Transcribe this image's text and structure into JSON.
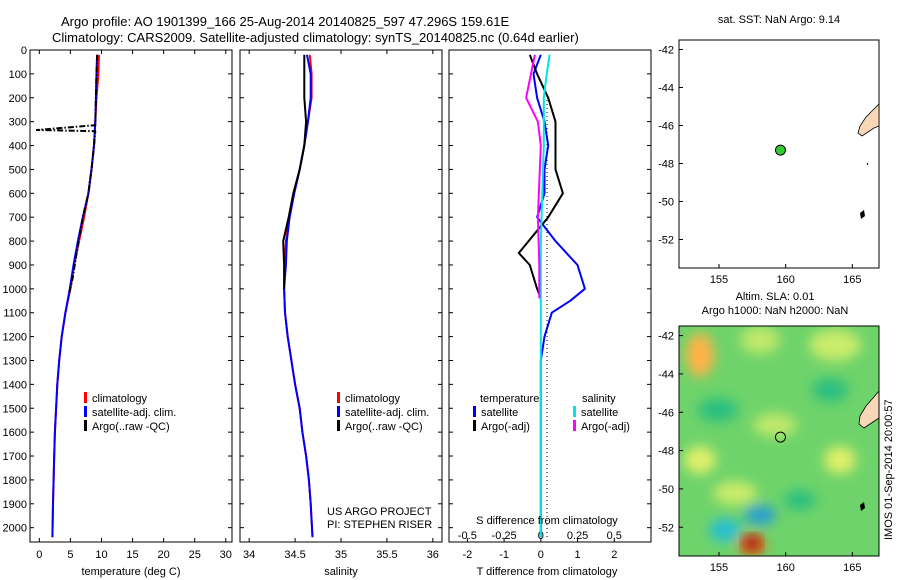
{
  "header": {
    "line1": "Argo profile: AO 1901399_166 25-Aug-2014 20140825_597 47.296S 159.61E",
    "line2": "Climatology: CARS2009. Satellite-adjusted climatology: synTS_20140825.nc (0.64d earlier)"
  },
  "colors": {
    "climatology": "#ff0000",
    "satellite": "#0000ff",
    "argo": "#000000",
    "sal_satellite": "#00e5e5",
    "sal_argo": "#ff00ff",
    "marker": "#33cc33"
  },
  "chart_data": [
    {
      "name": "temperature-profile",
      "type": "line",
      "xlabel": "temperature (deg C)",
      "xlim": [
        -1.5,
        31
      ],
      "xticks": [
        0,
        5,
        10,
        15,
        20,
        25,
        30
      ],
      "ylim": [
        2060,
        0
      ],
      "yticks": [
        0,
        100,
        200,
        300,
        400,
        500,
        600,
        700,
        800,
        900,
        1000,
        1100,
        1200,
        1300,
        1400,
        1500,
        1600,
        1700,
        1800,
        1900,
        2000
      ],
      "legend": [
        "climatology",
        "satellite-adj. clim.",
        "Argo(..raw -QC)"
      ],
      "legend_placement": "lower-center",
      "series": [
        {
          "name": "climatology",
          "x": [
            9.6,
            9.5,
            9.2,
            9.0,
            8.8,
            8.4,
            7.9,
            7.2,
            6.4,
            5.6,
            5.0,
            4.2,
            3.6,
            3.2,
            2.9,
            2.7,
            2.5,
            2.4,
            2.3,
            2.2,
            2.1
          ],
          "y": [
            20,
            100,
            200,
            300,
            400,
            500,
            600,
            700,
            800,
            900,
            1000,
            1100,
            1200,
            1300,
            1400,
            1500,
            1600,
            1700,
            1800,
            1900,
            2040
          ]
        },
        {
          "name": "satellite-adj. clim.",
          "x": [
            9.3,
            9.2,
            9.1,
            9.0,
            8.8,
            8.4,
            7.9,
            7.0,
            6.2,
            5.5,
            4.9,
            4.2,
            3.6,
            3.2,
            2.9,
            2.7,
            2.5,
            2.4,
            2.3,
            2.2,
            2.1
          ],
          "y": [
            20,
            100,
            200,
            300,
            400,
            500,
            600,
            700,
            800,
            900,
            1000,
            1100,
            1200,
            1300,
            1400,
            1500,
            1600,
            1700,
            1800,
            1900,
            2040
          ]
        },
        {
          "name": "Argo(..raw -QC)",
          "x": [
            9.3,
            9.2,
            9.1,
            9.0,
            -0.4,
            9.0,
            8.8,
            8.4,
            7.9,
            7.0,
            6.0,
            5.4,
            4.8
          ],
          "y": [
            20,
            100,
            200,
            315,
            335,
            340,
            400,
            500,
            600,
            700,
            850,
            950,
            1020
          ]
        }
      ]
    },
    {
      "name": "salinity-profile",
      "type": "line",
      "xlabel": "salinity",
      "xlim": [
        33.9,
        36.1
      ],
      "xticks": [
        34,
        34.5,
        35,
        35.5,
        36
      ],
      "ylim": [
        2060,
        0
      ],
      "legend": [
        "climatology",
        "satellite-adj. clim.",
        "Argo(..raw -QC)"
      ],
      "legend_placement": "lower-center",
      "annotation": [
        "US ARGO PROJECT",
        "PI: STEPHEN RISER"
      ],
      "series": [
        {
          "name": "climatology",
          "x": [
            34.66,
            34.68,
            34.68,
            34.64,
            34.6,
            34.55,
            34.49,
            34.44,
            34.4,
            34.39,
            34.38,
            34.39,
            34.42,
            34.46,
            34.5,
            34.55,
            34.58,
            34.62,
            34.65,
            34.67,
            34.69
          ],
          "y": [
            20,
            100,
            200,
            300,
            400,
            500,
            600,
            700,
            800,
            900,
            1000,
            1100,
            1200,
            1300,
            1400,
            1500,
            1600,
            1700,
            1800,
            1900,
            2040
          ]
        },
        {
          "name": "satellite-adj. clim.",
          "x": [
            34.63,
            34.67,
            34.67,
            34.64,
            34.6,
            34.55,
            34.49,
            34.44,
            34.41,
            34.4,
            34.38,
            34.39,
            34.42,
            34.46,
            34.5,
            34.55,
            34.58,
            34.62,
            34.65,
            34.67,
            34.69
          ],
          "y": [
            20,
            100,
            200,
            300,
            400,
            500,
            600,
            700,
            800,
            900,
            1000,
            1100,
            1200,
            1300,
            1400,
            1500,
            1600,
            1700,
            1800,
            1900,
            2040
          ]
        },
        {
          "name": "Argo(..raw -QC)",
          "x": [
            34.6,
            34.6,
            34.6,
            34.62,
            34.6,
            34.55,
            34.48,
            34.43,
            34.37,
            34.38,
            34.38
          ],
          "y": [
            20,
            100,
            200,
            300,
            400,
            500,
            600,
            700,
            800,
            900,
            1000
          ]
        }
      ]
    },
    {
      "name": "difference-profile",
      "type": "line",
      "xlabel": "T difference from climatology",
      "xlabel_top": "S difference from climatology",
      "xlim": [
        -2.5,
        3
      ],
      "xticks": [
        -2,
        -1,
        0,
        1,
        2
      ],
      "xticks_top": [
        -0.5,
        -0.25,
        0,
        0.25,
        0.5
      ],
      "ylim": [
        2060,
        0
      ],
      "legend_titles": [
        "temperature",
        "salinity"
      ],
      "legend": [
        "satellite",
        "Argo(-adj)",
        "satellite",
        "Argo(-adj)"
      ],
      "legend_placement": "lower-center",
      "series": [
        {
          "name": "temperature satellite",
          "x": [
            0.0,
            -0.2,
            -0.1,
            0.1,
            0.2,
            0.1,
            0.1,
            -0.1,
            0.4,
            1.0,
            1.2,
            0.8,
            0.3,
            0.1,
            0.0,
            0.0,
            0.0,
            0.0,
            0.0,
            0.0
          ],
          "y": [
            20,
            100,
            200,
            300,
            400,
            500,
            600,
            700,
            800,
            900,
            1000,
            1050,
            1100,
            1200,
            1300,
            1400,
            1600,
            1800,
            1900,
            2040
          ]
        },
        {
          "name": "temperature Argo(-adj)",
          "x": [
            -0.3,
            -0.1,
            0.2,
            0.4,
            0.4,
            0.6,
            0.2,
            -0.6,
            -0.3,
            -0.1,
            0.0
          ],
          "y": [
            20,
            100,
            200,
            300,
            500,
            600,
            700,
            850,
            900,
            1000,
            1040
          ]
        },
        {
          "name": "salinity satellite",
          "x": [
            0.06,
            0.04,
            0.02,
            0.02,
            0.01,
            0.0,
            0.0,
            0.0,
            0.0,
            0.0,
            0.0
          ],
          "y": [
            20,
            100,
            200,
            400,
            600,
            800,
            1000,
            1400,
            1700,
            1900,
            2040
          ]
        },
        {
          "name": "salinity Argo(-adj)",
          "x": [
            -0.04,
            -0.1,
            -0.02,
            0.0,
            -0.02,
            -0.01,
            -0.01
          ],
          "y": [
            20,
            200,
            300,
            400,
            700,
            900,
            1040
          ]
        }
      ]
    },
    {
      "name": "sst-map",
      "type": "scatter",
      "title": "sat. SST: NaN Argo: 9.14",
      "xlim": [
        152,
        167
      ],
      "ylim": [
        -53.5,
        -41.5
      ],
      "xticks": [
        155,
        160,
        165
      ],
      "yticks": [
        -42,
        -44,
        -46,
        -48,
        -50,
        -52
      ],
      "points": [
        {
          "x": 159.61,
          "y": -47.296
        }
      ]
    },
    {
      "name": "sla-map",
      "type": "heatmap",
      "title_lines": [
        "Altim. SLA: 0.01",
        "Argo h1000: NaN h2000: NaN"
      ],
      "xlim": [
        152,
        167
      ],
      "ylim": [
        -53.5,
        -41.5
      ],
      "xticks": [
        155,
        160,
        165
      ],
      "yticks": [
        -42,
        -44,
        -46,
        -48,
        -50,
        -52
      ],
      "points": [
        {
          "x": 159.61,
          "y": -47.296
        }
      ],
      "side_label": "IMOS 01-Sep-2014 20:00:57"
    }
  ]
}
